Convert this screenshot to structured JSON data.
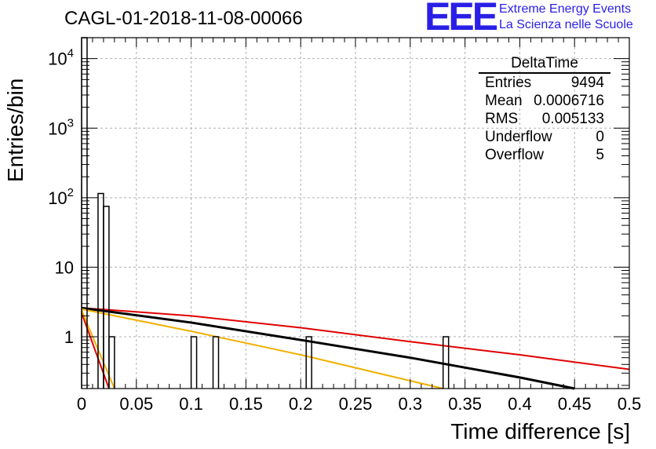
{
  "chart_data": {
    "type": "histogram",
    "title": "CAGL-01-2018-11-08-00066",
    "xlabel": "Time difference [s]",
    "ylabel": "Entries/bin",
    "xlim": [
      0,
      0.5
    ],
    "ylim": [
      0.18,
      20000
    ],
    "yscale": "log",
    "grid": true,
    "x_ticks": [
      "0",
      "0.05",
      "0.1",
      "0.15",
      "0.2",
      "0.25",
      "0.3",
      "0.35",
      "0.4",
      "0.45",
      "0.5"
    ],
    "y_ticks": [
      {
        "value": 1,
        "label": "1"
      },
      {
        "value": 10,
        "label": "10"
      },
      {
        "value": 100,
        "base": "10",
        "exp": "2"
      },
      {
        "value": 1000,
        "base": "10",
        "exp": "3"
      },
      {
        "value": 10000,
        "base": "10",
        "exp": "4"
      }
    ],
    "bin_width": 0.005,
    "histogram": [
      {
        "x0": 0.0,
        "x1": 0.005,
        "value": 20000
      },
      {
        "x0": 0.005,
        "x1": 0.01,
        "value": 0.1
      },
      {
        "x0": 0.01,
        "x1": 0.015,
        "value": 0.1
      },
      {
        "x0": 0.015,
        "x1": 0.02,
        "value": 115
      },
      {
        "x0": 0.02,
        "x1": 0.025,
        "value": 75
      },
      {
        "x0": 0.025,
        "x1": 0.03,
        "value": 1
      },
      {
        "x0": 0.1,
        "x1": 0.105,
        "value": 1
      },
      {
        "x0": 0.12,
        "x1": 0.125,
        "value": 1
      },
      {
        "x0": 0.205,
        "x1": 0.21,
        "value": 1
      },
      {
        "x0": 0.33,
        "x1": 0.335,
        "value": 1
      }
    ],
    "fit_lines": [
      {
        "name": "red-steep",
        "color": "#e00000",
        "points": [
          [
            0.0,
            2.2
          ],
          [
            0.025,
            0.18
          ]
        ]
      },
      {
        "name": "orange-steep",
        "color": "#f0b000",
        "points": [
          [
            0.0,
            2.4
          ],
          [
            0.03,
            0.18
          ]
        ]
      },
      {
        "name": "red-shallow",
        "color": "#e00000",
        "points": [
          [
            0.0,
            2.6
          ],
          [
            0.1,
            2.0
          ],
          [
            0.2,
            1.35
          ],
          [
            0.3,
            0.85
          ],
          [
            0.4,
            0.55
          ],
          [
            0.5,
            0.34
          ]
        ]
      },
      {
        "name": "black-mid",
        "color": "#000000",
        "points": [
          [
            0.0,
            2.6
          ],
          [
            0.1,
            1.6
          ],
          [
            0.2,
            0.9
          ],
          [
            0.3,
            0.5
          ],
          [
            0.4,
            0.26
          ],
          [
            0.45,
            0.18
          ]
        ]
      },
      {
        "name": "orange-shallow",
        "color": "#f0b000",
        "points": [
          [
            0.0,
            2.5
          ],
          [
            0.1,
            1.2
          ],
          [
            0.2,
            0.55
          ],
          [
            0.33,
            0.18
          ]
        ]
      }
    ],
    "stats": {
      "title": "DeltaTime",
      "rows": [
        {
          "label": "Entries",
          "value": "9494"
        },
        {
          "label": "Mean",
          "value": "0.0006716"
        },
        {
          "label": "RMS",
          "value": "0.005133"
        },
        {
          "label": "Underflow",
          "value": "0"
        },
        {
          "label": "Overflow",
          "value": "5"
        }
      ]
    }
  },
  "logo": {
    "mark": "EEE",
    "line1": "Extreme Energy Events",
    "line2": "La Scienza nelle Scuole"
  },
  "colors": {
    "logo_blue": "#2a1ee6",
    "fit_red": "#e00000",
    "fit_orange": "#f0b000"
  }
}
